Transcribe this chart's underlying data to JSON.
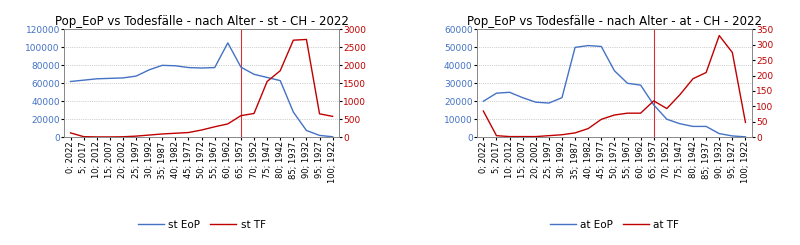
{
  "title_left": "Pop_EoP vs Todesfälle - nach Alter - st - CH - 2022",
  "title_right": "Pop_EoP vs Todesfälle - nach Alter - at - CH - 2022",
  "x_labels": [
    "0; 2022",
    "5; 2017",
    "10; 2012",
    "15; 2007",
    "20; 2002",
    "25; 1997",
    "30; 1992",
    "35; 1987",
    "40; 1982",
    "45; 1977",
    "50; 1972",
    "55; 1967",
    "60; 1962",
    "65; 1957",
    "70; 1952",
    "75; 1947",
    "80; 1942",
    "85; 1937",
    "90; 1932",
    "95; 1927",
    "100; 1922"
  ],
  "st_EoP": [
    62000,
    63500,
    65000,
    65500,
    66000,
    68000,
    75000,
    80000,
    79500,
    77500,
    77000,
    77500,
    105000,
    78000,
    70000,
    66500,
    63000,
    28000,
    7500,
    2000,
    500
  ],
  "st_TF": [
    120,
    15,
    8,
    8,
    12,
    30,
    60,
    90,
    110,
    130,
    200,
    290,
    370,
    600,
    660,
    1550,
    1850,
    2700,
    2720,
    650,
    580
  ],
  "at_EoP": [
    20000,
    24500,
    25000,
    22000,
    19500,
    19000,
    22000,
    50000,
    51000,
    50500,
    37000,
    30000,
    29000,
    18000,
    10000,
    7500,
    6000,
    6000,
    2000,
    700,
    200
  ],
  "at_TF": [
    85,
    5,
    2,
    2,
    2,
    5,
    8,
    14,
    28,
    58,
    72,
    78,
    78,
    118,
    93,
    138,
    190,
    210,
    330,
    275,
    48
  ],
  "st_EoP_ylim": [
    0,
    120000
  ],
  "st_TF_ylim": [
    0,
    3000
  ],
  "at_EoP_ylim": [
    0,
    60000
  ],
  "at_TF_ylim": [
    0,
    350
  ],
  "st_EoP_yticks": [
    0,
    20000,
    40000,
    60000,
    80000,
    100000,
    120000
  ],
  "st_TF_yticks": [
    0,
    500,
    1000,
    1500,
    2000,
    2500,
    3000
  ],
  "at_EoP_yticks": [
    0,
    10000,
    20000,
    30000,
    40000,
    50000,
    60000
  ],
  "at_TF_yticks": [
    0,
    50,
    100,
    150,
    200,
    250,
    300,
    350
  ],
  "color_blue": "#4472C4",
  "color_red": "#C00000",
  "vline_x_idx": 13,
  "legend_left": [
    "st EoP",
    "st TF"
  ],
  "legend_right": [
    "at EoP",
    "at TF"
  ],
  "bg_color": "#FFFFFF",
  "title_fontsize": 8.5,
  "axis_fontsize": 6.5,
  "legend_fontsize": 7.5,
  "border_color": "#AAAAAA"
}
